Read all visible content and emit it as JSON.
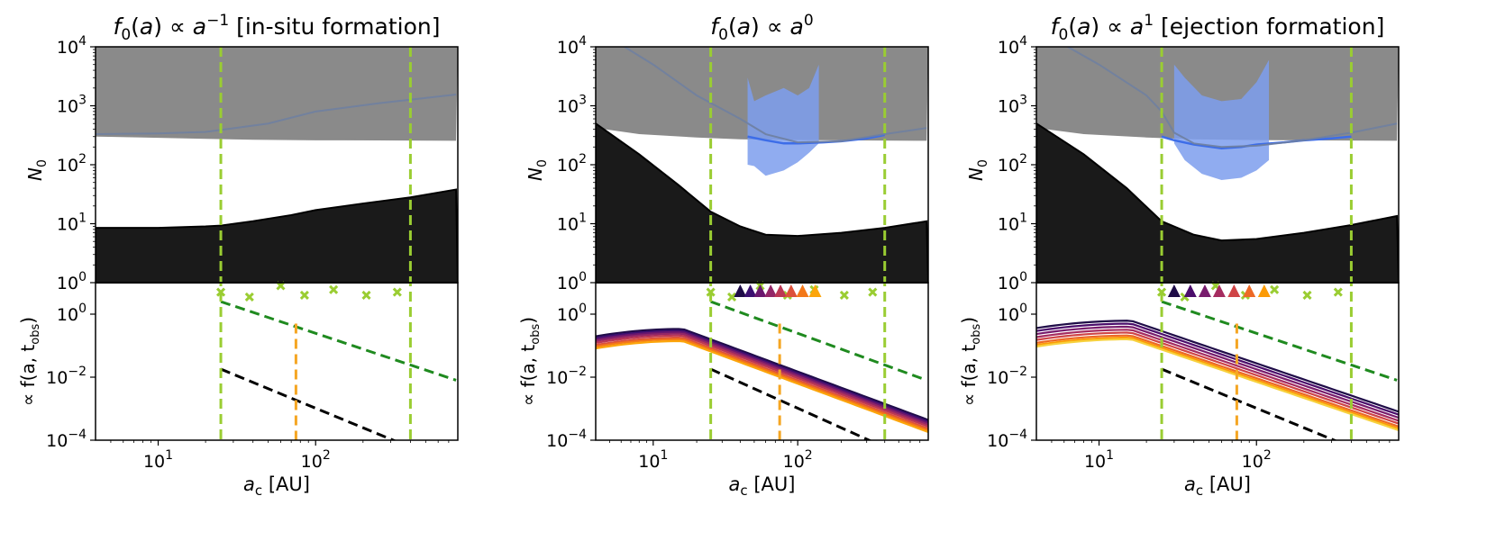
{
  "chart_data": [
    {
      "type": "area",
      "panel": "left",
      "title": "f₀(a) ∝ a⁻¹ [in-situ formation]",
      "title_parts": {
        "pre": "f",
        "sub": "0",
        "mid": "(a) ∝ a",
        "sup": "−1",
        "post": " [in-situ formation]"
      },
      "top": {
        "ylabel": "N₀",
        "yscale": "log",
        "ylim": [
          1,
          10000
        ],
        "yticks": [
          {
            "e": "0"
          },
          {
            "e": "1"
          },
          {
            "e": "2"
          },
          {
            "e": "3"
          },
          {
            "e": "4"
          }
        ],
        "gray_region_lower_bound": {
          "x": [
            4,
            8,
            20,
            40,
            100,
            250,
            780
          ],
          "y": [
            300,
            290,
            275,
            265,
            260,
            258,
            255
          ]
        },
        "gray_line": {
          "x": [
            4,
            10,
            20,
            50,
            100,
            250,
            780
          ],
          "y": [
            330,
            340,
            360,
            500,
            800,
            1100,
            1550
          ]
        },
        "black_region_upper_bound": {
          "x": [
            4,
            10,
            20,
            25,
            40,
            70,
            100,
            200,
            400,
            780
          ],
          "y": [
            8.5,
            8.5,
            9.0,
            9.3,
            11,
            14,
            17,
            22,
            28,
            38
          ]
        }
      },
      "bottom": {
        "ylabel": "∝ f(a, t_obs)",
        "yscale": "log",
        "ylim": [
          0.0001,
          10
        ],
        "yticks": [
          {
            "e": "−4"
          },
          {
            "e": "−2"
          },
          {
            "e": "0"
          }
        ],
        "markers_x": {
          "x": [
            25,
            38,
            60,
            85,
            130,
            210,
            330
          ],
          "y": [
            5,
            3.5,
            8,
            4,
            6,
            4,
            5
          ]
        },
        "green_dashed": {
          "x": [
            25,
            780
          ],
          "y": [
            2.5,
            0.008
          ]
        },
        "black_dashed": {
          "x": [
            25,
            780
          ],
          "y": [
            0.018,
            1.5e-05
          ]
        },
        "orange_vline_x": 75,
        "triangles": [],
        "curves": []
      },
      "green_vlines_x": [
        25,
        400
      ],
      "xlabel": "a_c [AU]",
      "xscale": "log",
      "xlim": [
        4,
        800
      ],
      "xticks": [
        {
          "e": "1"
        },
        {
          "e": "2"
        }
      ]
    },
    {
      "type": "area",
      "panel": "middle",
      "title": "f₀(a) ∝ a⁰",
      "title_parts": {
        "pre": "f",
        "sub": "0",
        "mid": "(a) ∝ a",
        "sup": "0",
        "post": ""
      },
      "top": {
        "ylabel": "N₀",
        "yscale": "log",
        "ylim": [
          1,
          10000
        ],
        "yticks": [
          {
            "e": "0"
          },
          {
            "e": "1"
          },
          {
            "e": "2"
          },
          {
            "e": "3"
          },
          {
            "e": "4"
          }
        ],
        "gray_region_lower_bound": {
          "x": [
            4,
            8,
            20,
            40,
            100,
            250,
            780
          ],
          "y": [
            420,
            330,
            290,
            270,
            262,
            258,
            255
          ]
        },
        "gray_line": {
          "x": [
            4,
            10,
            20,
            40,
            60,
            100,
            200,
            400,
            780
          ],
          "y": [
            20000,
            5000,
            1500,
            600,
            330,
            240,
            250,
            330,
            420
          ]
        },
        "blue_band": {
          "x": [
            45,
            50,
            60,
            80,
            100,
            120,
            140
          ],
          "low": [
            100,
            95,
            65,
            80,
            110,
            160,
            230
          ],
          "high": [
            3000,
            1200,
            1500,
            2000,
            1500,
            2000,
            5000
          ]
        },
        "blue_line": {
          "x": [
            45,
            60,
            80,
            100,
            150,
            200,
            300,
            400
          ],
          "y": [
            300,
            260,
            230,
            230,
            240,
            250,
            280,
            320
          ]
        },
        "black_region_upper_bound": {
          "x": [
            4,
            8,
            15,
            25,
            40,
            60,
            100,
            200,
            400,
            780
          ],
          "y": [
            500,
            150,
            45,
            16,
            9,
            6.5,
            6.2,
            7,
            8.5,
            11
          ]
        }
      },
      "bottom": {
        "ylabel": "∝ f(a, t_obs)",
        "yscale": "log",
        "ylim": [
          0.0001,
          10
        ],
        "yticks": [
          {
            "e": "−4"
          },
          {
            "e": "−2"
          },
          {
            "e": "0"
          }
        ],
        "markers_x": {
          "x": [
            25,
            35,
            55,
            85,
            130,
            210,
            330
          ],
          "y": [
            5,
            3.5,
            8,
            4,
            6,
            4,
            5
          ]
        },
        "green_dashed": {
          "x": [
            25,
            780
          ],
          "y": [
            2.5,
            0.008
          ]
        },
        "black_dashed": {
          "x": [
            25,
            780
          ],
          "y": [
            0.018,
            1.5e-05
          ]
        },
        "orange_vline_x": 75,
        "triangles": {
          "x": [
            40,
            47,
            55,
            65,
            76,
            90,
            108,
            132
          ],
          "colors": [
            "#1f0c48",
            "#3b0f70",
            "#6a176e",
            "#932667",
            "#bc3754",
            "#dd513a",
            "#f37819",
            "#fca50a"
          ]
        },
        "curves": {
          "x": [
            4,
            8,
            15,
            25,
            50,
            100,
            200,
            400,
            780
          ],
          "peak_scales": [
            0.34,
            0.3,
            0.27,
            0.24,
            0.21,
            0.18,
            0.16,
            0.14
          ],
          "colors": [
            "#1f0c48",
            "#3b0f70",
            "#6a176e",
            "#932667",
            "#bc3754",
            "#dd513a",
            "#f37819",
            "#fca50a"
          ]
        }
      },
      "green_vlines_x": [
        25,
        400
      ],
      "xlabel": "a_c [AU]",
      "xscale": "log",
      "xlim": [
        4,
        800
      ],
      "xticks": [
        {
          "e": "1"
        },
        {
          "e": "2"
        }
      ]
    },
    {
      "type": "area",
      "panel": "right",
      "title": "f₀(a) ∝ a¹ [ejection formation]",
      "title_parts": {
        "pre": "f",
        "sub": "0",
        "mid": "(a) ∝ a",
        "sup": "1",
        "post": " [ejection formation]"
      },
      "top": {
        "ylabel": "N₀",
        "yscale": "log",
        "ylim": [
          1,
          10000
        ],
        "yticks": [
          {
            "e": "0"
          },
          {
            "e": "1"
          },
          {
            "e": "2"
          },
          {
            "e": "3"
          },
          {
            "e": "4"
          }
        ],
        "gray_region_lower_bound": {
          "x": [
            4,
            8,
            20,
            40,
            100,
            250,
            780
          ],
          "y": [
            420,
            330,
            290,
            270,
            262,
            258,
            255
          ]
        },
        "gray_line": {
          "x": [
            4,
            10,
            20,
            25,
            30,
            40,
            60,
            100,
            200,
            400,
            780
          ],
          "y": [
            20000,
            5000,
            1500,
            800,
            350,
            230,
            200,
            210,
            260,
            350,
            500
          ]
        },
        "blue_band": {
          "x": [
            30,
            35,
            45,
            60,
            80,
            100,
            120
          ],
          "low": [
            230,
            120,
            70,
            55,
            60,
            80,
            120
          ],
          "high": [
            5000,
            3000,
            1500,
            1200,
            1300,
            2500,
            6000
          ]
        },
        "blue_line": {
          "x": [
            25,
            30,
            40,
            60,
            80,
            100,
            150,
            200,
            300,
            400
          ],
          "y": [
            300,
            260,
            220,
            190,
            200,
            220,
            240,
            260,
            280,
            300
          ]
        },
        "black_region_upper_bound": {
          "x": [
            4,
            8,
            15,
            25,
            40,
            60,
            100,
            200,
            400,
            780
          ],
          "y": [
            500,
            150,
            40,
            11,
            6.5,
            5.2,
            5.5,
            7,
            9.5,
            13.5
          ]
        }
      },
      "bottom": {
        "ylabel": "∝ f(a, t_obs)",
        "yscale": "log",
        "ylim": [
          0.0001,
          10
        ],
        "yticks": [
          {
            "e": "−4"
          },
          {
            "e": "−2"
          },
          {
            "e": "0"
          }
        ],
        "markers_x": {
          "x": [
            25,
            35,
            55,
            85,
            130,
            210,
            330
          ],
          "y": [
            5,
            3.5,
            8,
            4,
            6,
            4,
            5
          ]
        },
        "green_dashed": {
          "x": [
            25,
            780
          ],
          "y": [
            2.5,
            0.008
          ]
        },
        "black_dashed": {
          "x": [
            25,
            780
          ],
          "y": [
            0.018,
            1.5e-05
          ]
        },
        "orange_vline_x": 75,
        "triangles": {
          "x": [
            30,
            38,
            47,
            58,
            72,
            90,
            112
          ],
          "colors": [
            "#1f0c48",
            "#4a0c6b",
            "#781c6d",
            "#a52c60",
            "#cf4446",
            "#ed6925",
            "#fb9b06"
          ]
        },
        "curves": {
          "x": [
            4,
            8,
            15,
            25,
            50,
            100,
            200,
            400,
            780
          ],
          "peak_scales": [
            0.62,
            0.5,
            0.4,
            0.32,
            0.26,
            0.21,
            0.18,
            0.16
          ],
          "colors": [
            "#1f0c48",
            "#4a0c6b",
            "#781c6d",
            "#a52c60",
            "#cf4446",
            "#ed6925",
            "#fb9b06",
            "#f7d13d"
          ]
        }
      },
      "green_vlines_x": [
        25,
        400
      ],
      "xlabel": "a_c [AU]",
      "xscale": "log",
      "xlim": [
        4,
        800
      ],
      "xticks": [
        {
          "e": "1"
        },
        {
          "e": "2"
        }
      ]
    }
  ],
  "colors": {
    "gray_region": "#8a8a8a",
    "gray_line": "#6f7fa0",
    "black_region": "#1a1a1a",
    "blue_band": "#7c9ded",
    "blue_line": "#3d6de8",
    "green_vline": "#9acd32",
    "orange_vline": "#f5a623",
    "green_dashed": "#1f8a1f",
    "black_dashed": "#000000",
    "markers_x": "#9acd32"
  },
  "labels": {
    "ylabel_top_main": "N",
    "ylabel_top_sub": "0",
    "ylabel_bot_main": "∝ f(a, t",
    "ylabel_bot_sub": "obs",
    "ylabel_bot_end": ")",
    "xlabel_main": "a",
    "xlabel_sub": "c",
    "xlabel_unit": " [AU]",
    "tick_base": "10"
  }
}
